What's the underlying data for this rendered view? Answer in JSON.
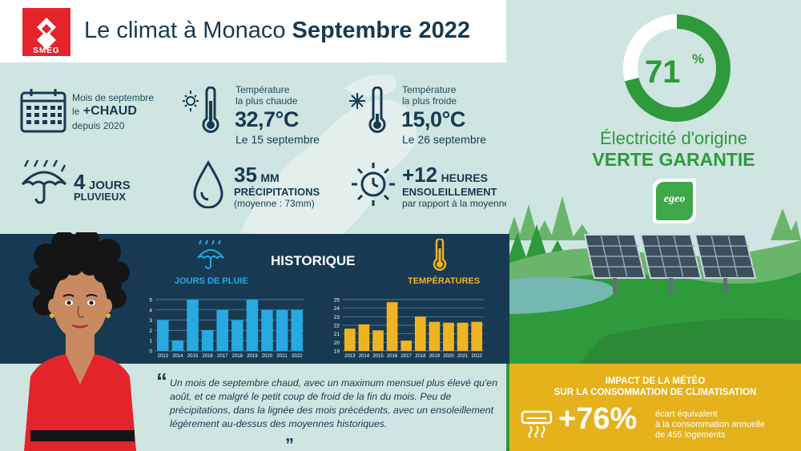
{
  "header": {
    "logo_text": "SMEG",
    "title_prefix": "Le climat à Monaco",
    "title_highlight": "Septembre 2022"
  },
  "stats": {
    "hottest_month": {
      "line1": "Mois de septembre",
      "line2_prefix": "le",
      "line2_big": "+CHAUD",
      "line3": "depuis 2020"
    },
    "max_temp": {
      "label1": "Température",
      "label2": "la plus chaude",
      "value": "32,7°C",
      "date": "Le 15 septembre"
    },
    "min_temp": {
      "label1": "Température",
      "label2": "la plus froide",
      "value": "15,0°C",
      "date": "Le 26 septembre"
    },
    "rain_days": {
      "value": "4",
      "unit": "JOURS",
      "label": "PLUVIEUX"
    },
    "precip": {
      "value": "35",
      "unit": "MM",
      "label": "PRÉCIPITATIONS",
      "note": "(moyenne : 73mm)"
    },
    "sun": {
      "value": "+12",
      "unit": "HEURES",
      "label": "ENSOLEILLEMENT",
      "note": "par rapport à la moyenne"
    }
  },
  "green": {
    "percent": "71",
    "percent_sign": "%",
    "percent_value": 0.71,
    "line1": "Électricité d'origine",
    "line2": "VERTE GARANTIE",
    "badge": "egeo"
  },
  "historique": {
    "title": "HISTORIQUE",
    "rain_label": "JOURS DE PLUIE",
    "temp_label": "TEMPÉRATURES"
  },
  "chart_data": [
    {
      "type": "bar",
      "title": "JOURS DE PLUIE",
      "categories": [
        "2013",
        "2014",
        "2015",
        "2016",
        "2017",
        "2018",
        "2019",
        "2020",
        "2021",
        "2022"
      ],
      "values": [
        3,
        1,
        5,
        2,
        4,
        3,
        5,
        4,
        4,
        4
      ],
      "ylim": [
        0,
        5
      ],
      "yticks": [
        "0",
        "1",
        "2",
        "3",
        "4",
        "5"
      ],
      "color": "#27a9e1",
      "grid": true
    },
    {
      "type": "bar",
      "title": "TEMPÉRATURES",
      "categories": [
        "2013",
        "2014",
        "2015",
        "2016",
        "2017",
        "2018",
        "2019",
        "2020",
        "2021",
        "2022"
      ],
      "values": [
        21.6,
        22.1,
        21.4,
        24.7,
        20.2,
        23.0,
        22.4,
        22.3,
        22.3,
        22.4
      ],
      "ylim": [
        19,
        25
      ],
      "yticks": [
        "19",
        "20",
        "21",
        "22",
        "23",
        "24",
        "25"
      ],
      "color": "#f0b323",
      "grid": true
    }
  ],
  "quote": {
    "open": "“",
    "text": "Un mois de septembre chaud, avec un maximum mensuel plus élevé qu'en août, et ce malgré le petit coup de froid de la fin du mois. Peu de précipitations, dans la lignée des mois précédents, avec un ensoleillement légèrement au-dessus des moyennes historiques.",
    "close": "„"
  },
  "impact": {
    "title1": "IMPACT DE LA MÉTÉO",
    "title2": "SUR LA CONSOMMATION DE CLIMATISATION",
    "value": "+76%",
    "desc1": "écart équivalent",
    "desc2": "à la consommation annuelle",
    "desc3": "de 455 logements"
  },
  "colors": {
    "navy": "#173a52",
    "green": "#2e9a3c",
    "yellow": "#e5b21b",
    "bg": "#cfe5e1",
    "red": "#e3242b"
  }
}
